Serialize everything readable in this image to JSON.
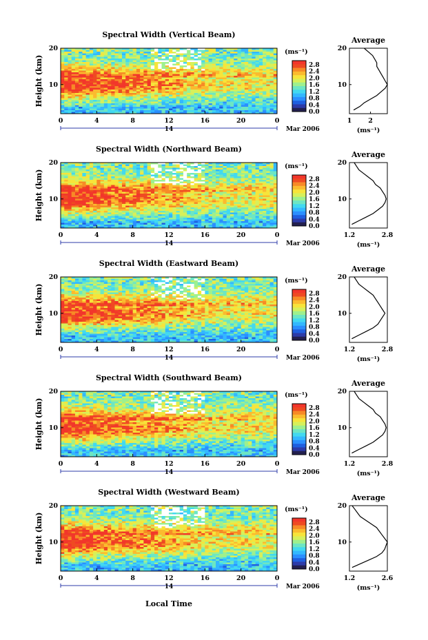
{
  "colors": {
    "colormap": [
      "#23204f",
      "#2d3ba8",
      "#1f5fe0",
      "#2b8fff",
      "#33b8ff",
      "#42d9f0",
      "#6de6c3",
      "#9ef08e",
      "#d7f05a",
      "#f7e43a",
      "#fbbb2e",
      "#f78a26",
      "#ef4a22"
    ],
    "saturated": "#f2362b",
    "noData": "#ffffff"
  },
  "chart_data": [
    {
      "type": "heatmap",
      "title": "Spectral Width (Vertical Beam)",
      "ylabel": "Height (km)",
      "x_ticks": [
        "0",
        "4",
        "8",
        "12",
        "16",
        "20",
        "0"
      ],
      "xlim": [
        0,
        24
      ],
      "ylim": [
        2,
        20
      ],
      "y_ticks": [
        "20",
        "10"
      ],
      "date_day": "14",
      "date_label": "Mar 2006",
      "colorbar": {
        "unit": "(ms⁻¹)",
        "ticks": [
          "2.8",
          "2.4",
          "2.0",
          "1.6",
          "1.2",
          "0.8",
          "0.4",
          "0.0"
        ],
        "range": [
          0.0,
          2.8
        ]
      },
      "profile": {
        "title": "Average",
        "xlabel": "(ms⁻¹)",
        "x_ticks": [
          "1",
          "2"
        ],
        "xlim": [
          1,
          2.8
        ],
        "ylim": [
          2,
          20
        ],
        "y_ticks": [
          "20",
          "10"
        ],
        "heights": [
          3,
          4,
          5,
          6,
          7,
          8,
          9,
          10,
          11,
          12,
          13,
          14,
          15,
          16,
          17,
          18,
          19,
          20
        ],
        "values": [
          1.2,
          1.5,
          1.7,
          2.0,
          2.3,
          2.5,
          2.7,
          2.8,
          2.7,
          2.6,
          2.5,
          2.4,
          2.3,
          2.3,
          2.2,
          2.1,
          1.9,
          1.7
        ]
      }
    },
    {
      "type": "heatmap",
      "title": "Spectral Width (Northward Beam)",
      "ylabel": "Height (km)",
      "x_ticks": [
        "0",
        "4",
        "8",
        "12",
        "16",
        "20",
        "0"
      ],
      "xlim": [
        0,
        24
      ],
      "ylim": [
        2,
        20
      ],
      "y_ticks": [
        "20",
        "10"
      ],
      "date_day": "14",
      "date_label": "Mar 2006",
      "colorbar": {
        "unit": "(ms⁻¹)",
        "ticks": [
          "2.8",
          "2.4",
          "2.0",
          "1.6",
          "1.2",
          "0.8",
          "0.4",
          "0.0"
        ],
        "range": [
          0.0,
          2.8
        ]
      },
      "profile": {
        "title": "Average",
        "xlabel": "(ms⁻¹)",
        "x_ticks": [
          "1.2",
          "2.8"
        ],
        "xlim": [
          1.2,
          2.8
        ],
        "ylim": [
          2,
          20
        ],
        "y_ticks": [
          "20",
          "10"
        ],
        "heights": [
          3,
          4,
          5,
          6,
          7,
          8,
          9,
          10,
          11,
          12,
          13,
          14,
          15,
          16,
          17,
          18,
          19,
          20
        ],
        "values": [
          1.3,
          1.6,
          1.9,
          2.2,
          2.4,
          2.6,
          2.7,
          2.75,
          2.7,
          2.6,
          2.5,
          2.3,
          2.2,
          2.0,
          1.8,
          1.6,
          1.5,
          1.4
        ]
      }
    },
    {
      "type": "heatmap",
      "title": "Spectral Width (Eastward Beam)",
      "ylabel": "Height (km)",
      "x_ticks": [
        "0",
        "4",
        "8",
        "12",
        "16",
        "20",
        "0"
      ],
      "xlim": [
        0,
        24
      ],
      "ylim": [
        2,
        20
      ],
      "y_ticks": [
        "20",
        "10"
      ],
      "date_day": "14",
      "date_label": "Mar 2006",
      "colorbar": {
        "unit": "(ms⁻¹)",
        "ticks": [
          "2.8",
          "2.4",
          "2.0",
          "1.6",
          "1.2",
          "0.8",
          "0.4",
          "0.0"
        ],
        "range": [
          0.0,
          2.8
        ]
      },
      "profile": {
        "title": "Average",
        "xlabel": "(ms⁻¹)",
        "x_ticks": [
          "1.2",
          "2.8"
        ],
        "xlim": [
          1.2,
          2.8
        ],
        "ylim": [
          2,
          20
        ],
        "y_ticks": [
          "20",
          "10"
        ],
        "heights": [
          3,
          4,
          5,
          6,
          7,
          8,
          9,
          10,
          11,
          12,
          13,
          14,
          15,
          16,
          17,
          18,
          19,
          20
        ],
        "values": [
          1.3,
          1.6,
          1.9,
          2.2,
          2.4,
          2.5,
          2.6,
          2.7,
          2.6,
          2.5,
          2.4,
          2.3,
          2.2,
          2.0,
          1.8,
          1.6,
          1.5,
          1.4
        ]
      }
    },
    {
      "type": "heatmap",
      "title": "Spectral Width (Southward Beam)",
      "ylabel": "Height (km)",
      "x_ticks": [
        "0",
        "4",
        "8",
        "12",
        "16",
        "20",
        "0"
      ],
      "xlim": [
        0,
        24
      ],
      "ylim": [
        2,
        20
      ],
      "y_ticks": [
        "20",
        "10"
      ],
      "date_day": "14",
      "date_label": "Mar 2006",
      "colorbar": {
        "unit": "(ms⁻¹)",
        "ticks": [
          "2.8",
          "2.4",
          "2.0",
          "1.6",
          "1.2",
          "0.8",
          "0.4",
          "0.0"
        ],
        "range": [
          0.0,
          2.8
        ]
      },
      "profile": {
        "title": "Average",
        "xlabel": "(ms⁻¹)",
        "x_ticks": [
          "1.2",
          "2.8"
        ],
        "xlim": [
          1.2,
          2.8
        ],
        "ylim": [
          2,
          20
        ],
        "y_ticks": [
          "20",
          "10"
        ],
        "heights": [
          3,
          4,
          5,
          6,
          7,
          8,
          9,
          10,
          11,
          12,
          13,
          14,
          15,
          16,
          17,
          18,
          19,
          20
        ],
        "values": [
          1.3,
          1.6,
          1.9,
          2.2,
          2.4,
          2.6,
          2.7,
          2.75,
          2.7,
          2.6,
          2.5,
          2.3,
          2.2,
          2.0,
          1.8,
          1.6,
          1.5,
          1.4
        ]
      }
    },
    {
      "type": "heatmap",
      "title": "Spectral Width (Westward Beam)",
      "ylabel": "Height (km)",
      "x_ticks": [
        "0",
        "4",
        "8",
        "12",
        "16",
        "20",
        "0"
      ],
      "xlim": [
        0,
        24
      ],
      "ylim": [
        2,
        20
      ],
      "y_ticks": [
        "20",
        "10"
      ],
      "date_day": "14",
      "date_label": "Mar 2006",
      "colorbar": {
        "unit": "(ms⁻¹)",
        "ticks": [
          "2.8",
          "2.4",
          "2.0",
          "1.6",
          "1.2",
          "0.8",
          "0.4",
          "0.0"
        ],
        "range": [
          0.0,
          2.8
        ]
      },
      "profile": {
        "title": "Average",
        "xlabel": "(ms⁻¹)",
        "x_ticks": [
          "1.2",
          "2.6"
        ],
        "xlim": [
          1.2,
          2.6
        ],
        "ylim": [
          2,
          20
        ],
        "y_ticks": [
          "20",
          "10"
        ],
        "heights": [
          3,
          4,
          5,
          6,
          7,
          8,
          9,
          10,
          11,
          12,
          13,
          14,
          15,
          16,
          17,
          18,
          19,
          20
        ],
        "values": [
          1.3,
          1.6,
          1.9,
          2.2,
          2.4,
          2.5,
          2.55,
          2.6,
          2.5,
          2.4,
          2.3,
          2.2,
          2.0,
          1.8,
          1.6,
          1.5,
          1.4,
          1.3
        ]
      }
    }
  ],
  "xaxis_title": "Local Time"
}
